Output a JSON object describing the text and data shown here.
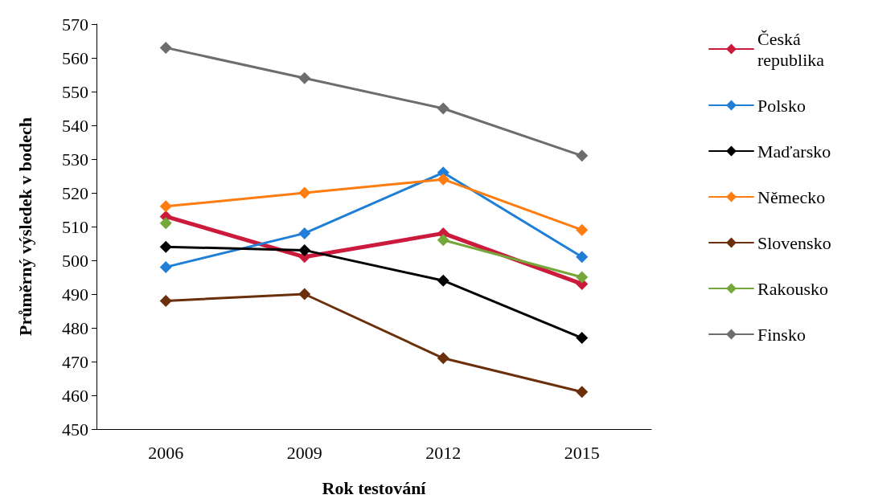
{
  "chart_data": {
    "type": "line",
    "xlabel": "Rok testování",
    "ylabel": "Průměrný výsledek v bodech",
    "categories": [
      "2006",
      "2009",
      "2012",
      "2015"
    ],
    "series": [
      {
        "name": "Česká republika",
        "color": "#cc1a3c",
        "values": [
          513,
          501,
          508,
          493
        ]
      },
      {
        "name": "Polsko",
        "color": "#1f7fd6",
        "values": [
          498,
          508,
          526,
          501
        ]
      },
      {
        "name": "Maďarsko",
        "color": "#000000",
        "values": [
          504,
          503,
          494,
          477
        ]
      },
      {
        "name": "Německo",
        "color": "#ff7c10",
        "values": [
          516,
          520,
          524,
          509
        ]
      },
      {
        "name": "Slovensko",
        "color": "#6b2f0b",
        "values": [
          488,
          490,
          471,
          461
        ]
      },
      {
        "name": "Rakousko",
        "color": "#76a73a",
        "values": [
          511,
          null,
          506,
          495
        ]
      },
      {
        "name": "Finsko",
        "color": "#6d6d6d",
        "values": [
          563,
          554,
          545,
          531
        ]
      }
    ],
    "ylim": [
      450,
      570
    ],
    "yticks": [
      450,
      460,
      470,
      480,
      490,
      500,
      510,
      520,
      530,
      540,
      550,
      560,
      570
    ],
    "grid": false,
    "legend": "right",
    "marker": "diamond",
    "line_style": "solid"
  }
}
